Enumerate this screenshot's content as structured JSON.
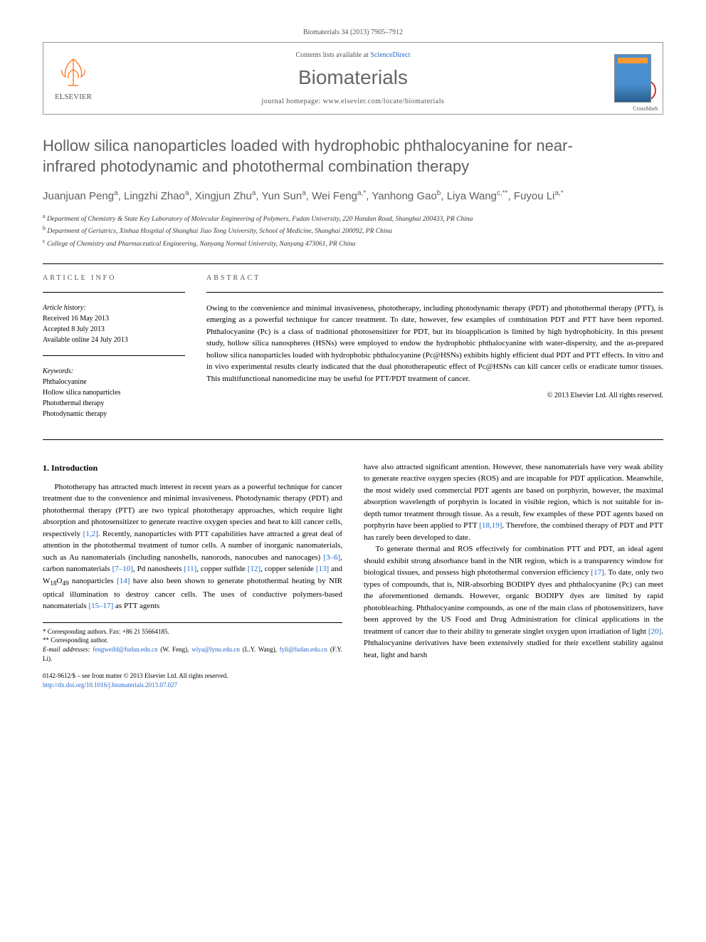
{
  "header_citation": "Biomaterials 34 (2013) 7905–7912",
  "journal_box": {
    "contents_prefix": "Contents lists available at ",
    "contents_link": "ScienceDirect",
    "journal_name": "Biomaterials",
    "homepage_prefix": "journal homepage: ",
    "homepage_url": "www.elsevier.com/locate/biomaterials",
    "publisher_label": "ELSEVIER"
  },
  "crossmark_label": "CrossMark",
  "title": "Hollow silica nanoparticles loaded with hydrophobic phthalocyanine for near-infrared photodynamic and photothermal combination therapy",
  "authors_html": "Juanjuan Peng<sup>a</sup>, Lingzhi Zhao<sup>a</sup>, Xingjun Zhu<sup>a</sup>, Yun Sun<sup>a</sup>, Wei Feng<sup>a,*</sup>, Yanhong Gao<sup>b</sup>, Liya Wang<sup>c,**</sup>, Fuyou Li<sup>a,*</sup>",
  "affiliations": [
    {
      "sup": "a",
      "text": "Department of Chemistry & State Key Laboratory of Molecular Engineering of Polymers, Fudan University, 220 Handan Road, Shanghai 200433, PR China"
    },
    {
      "sup": "b",
      "text": "Department of Geriatrics, Xinhua Hospital of Shanghai Jiao Tong University, School of Medicine, Shanghai 200092, PR China"
    },
    {
      "sup": "c",
      "text": "College of Chemistry and Pharmaceutical Engineering, Nanyang Normal University, Nanyang 473061, PR China"
    }
  ],
  "article_info": {
    "label": "ARTICLE INFO",
    "history_title": "Article history:",
    "history": [
      "Received 16 May 2013",
      "Accepted 8 July 2013",
      "Available online 24 July 2013"
    ],
    "keywords_title": "Keywords:",
    "keywords": [
      "Phthalocyanine",
      "Hollow silica nanoparticles",
      "Photothermal therapy",
      "Photodynamic therapy"
    ]
  },
  "abstract": {
    "label": "ABSTRACT",
    "text": "Owing to the convenience and minimal invasiveness, phototherapy, including photodynamic therapy (PDT) and photothermal therapy (PTT), is emerging as a powerful technique for cancer treatment. To date, however, few examples of combination PDT and PTT have been reported. Phthalocyanine (Pc) is a class of traditional photosensitizer for PDT, but its bioapplication is limited by high hydrophobicity. In this present study, hollow silica nanospheres (HSNs) were employed to endow the hydrophobic phthalocyanine with water-dispersity, and the as-prepared hollow silica nanoparticles loaded with hydrophobic phthalocyanine (Pc@HSNs) exhibits highly efficient dual PDT and PTT effects. In vitro and in vivo experimental results clearly indicated that the dual phototherapeutic effect of Pc@HSNs can kill cancer cells or eradicate tumor tissues. This multifunctional nanomedicine may be useful for PTT/PDT treatment of cancer.",
    "copyright": "© 2013 Elsevier Ltd. All rights reserved."
  },
  "intro_heading": "1. Introduction",
  "intro_col1_p1_a": "Phototherapy has attracted much interest in recent years as a powerful technique for cancer treatment due to the convenience and minimal invasiveness. Photodynamic therapy (PDT) and photothermal therapy (PTT) are two typical phototherapy approaches, which require light absorption and photosensitizer to generate reactive oxygen species and heat to kill cancer cells, respectively ",
  "intro_col1_ref1": "[1,2]",
  "intro_col1_p1_b": ". Recently, nanoparticles with PTT capabilities have attracted a great deal of attention in the photothermal treatment of tumor cells. A number of inorganic nanomaterials, such as Au nanomaterials (including nanoshells, nanorods, nanocubes and nanocages) ",
  "intro_col1_ref2": "[3–6]",
  "intro_col1_p1_c": ", carbon nanomaterials ",
  "intro_col1_ref3": "[7–10]",
  "intro_col1_p1_d": ", Pd nanosheets ",
  "intro_col1_ref4": "[11]",
  "intro_col1_p1_e": ", copper sulfide ",
  "intro_col1_ref5": "[12]",
  "intro_col1_p1_f": ", copper selenide ",
  "intro_col1_ref6": "[13]",
  "intro_col1_p1_g": " and W",
  "intro_col1_sub1": "18",
  "intro_col1_p1_h": "O",
  "intro_col1_sub2": "49",
  "intro_col1_p1_i": " nanoparticles ",
  "intro_col1_ref7": "[14]",
  "intro_col1_p1_j": " have also been shown to generate photothermal heating by NIR optical illumination to destroy cancer cells. The uses of conductive polymers-based nanomaterials ",
  "intro_col1_ref8": "[15–17]",
  "intro_col1_p1_k": " as PTT agents",
  "intro_col2_p1_a": "have also attracted significant attention. However, these nanomaterials have very weak ability to generate reactive oxygen species (ROS) and are incapable for PDT application. Meanwhile, the most widely used commercial PDT agents are based on porphyrin, however, the maximal absorption wavelength of porphyrin is located in visible region, which is not suitable for in-depth tumor treatment through tissue. As a result, few examples of these PDT agents based on porphyrin have been applied to PTT ",
  "intro_col2_ref1": "[18,19]",
  "intro_col2_p1_b": ". Therefore, the combined therapy of PDT and PTT has rarely been developed to date.",
  "intro_col2_p2_a": "To generate thermal and ROS effectively for combination PTT and PDT, an ideal agent should exhibit strong absorbance band in the NIR region, which is a transparency window for biological tissues, and possess high photothermal conversion efficiency ",
  "intro_col2_ref2": "[17]",
  "intro_col2_p2_b": ". To date, only two types of compounds, that is, NIR-absorbing BODIPY dyes and phthalocyanine (Pc) can meet the aforementioned demands. However, organic BODIPY dyes are limited by rapid photobleaching. Phthalocyanine compounds, as one of the main class of photosensitizers, have been approved by the US Food and Drug Administration for clinical applications in the treatment of cancer due to their ability to generate singlet oxygen upon irradiation of light ",
  "intro_col2_ref3": "[20]",
  "intro_col2_p2_c": ". Phthalocyanine derivatives have been extensively studied for their excellent stability against heat, light and harsh",
  "footnotes": {
    "corr1": "* Corresponding authors. Fax: +86 21 55664185.",
    "corr2": "** Corresponding author.",
    "email_label": "E-mail addresses: ",
    "emails": [
      {
        "addr": "fengweifd@fudan.edu.cn",
        "who": " (W. Feng), "
      },
      {
        "addr": "wlya@lynu.edu.cn",
        "who": " (L.Y. Wang), "
      },
      {
        "addr": "fyli@fudan.edu.cn",
        "who": " (F.Y. Li)."
      }
    ]
  },
  "footer": {
    "issn_line": "0142-9612/$ – see front matter © 2013 Elsevier Ltd. All rights reserved.",
    "doi_url": "http://dx.doi.org/10.1016/j.biomaterials.2013.07.027"
  },
  "colors": {
    "link": "#2266cc",
    "title_gray": "#606060",
    "elsevier_orange": "#ff6600"
  }
}
